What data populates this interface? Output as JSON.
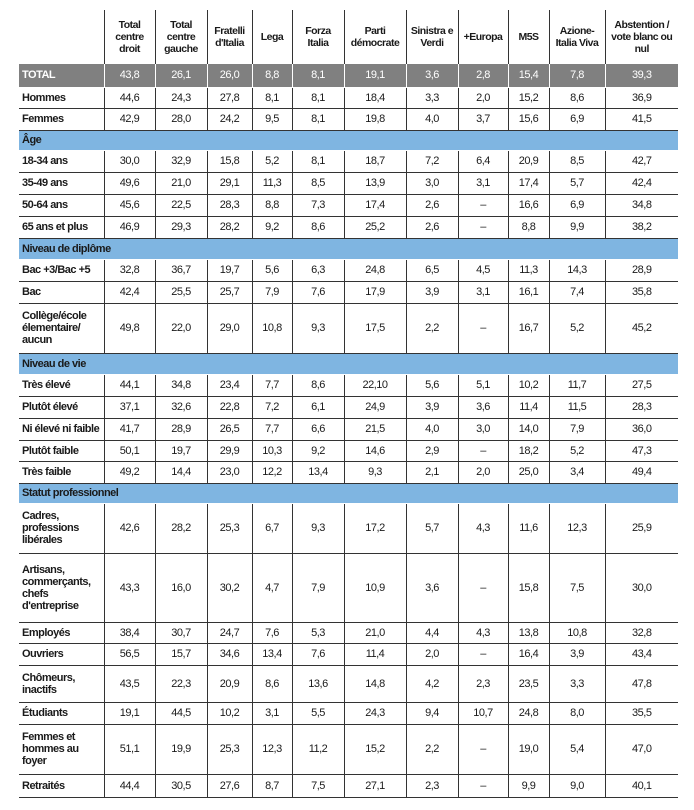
{
  "columns": [
    "",
    "Total centre droit",
    "Total centre gauche",
    "Fratelli d'Italia",
    "Lega",
    "Forza Italia",
    "Parti démocrate",
    "Sinistra e Verdi",
    "+Europa",
    "M5S",
    "Azione-Italia Viva",
    "Abstention / vote blanc ou nul"
  ],
  "colors": {
    "total_bg": "#808080",
    "section_bg": "#7fb5e1"
  },
  "rows": [
    {
      "type": "total",
      "label": "TOTAL",
      "values": [
        "43,8",
        "26,1",
        "26,0",
        "8,8",
        "8,1",
        "19,1",
        "3,6",
        "2,8",
        "15,4",
        "7,8",
        "39,3"
      ]
    },
    {
      "type": "data",
      "label": "Hommes",
      "values": [
        "44,6",
        "24,3",
        "27,8",
        "8,1",
        "8,1",
        "18,4",
        "3,3",
        "2,0",
        "15,2",
        "8,6",
        "36,9"
      ]
    },
    {
      "type": "data",
      "label": "Femmes",
      "values": [
        "42,9",
        "28,0",
        "24,2",
        "9,5",
        "8,1",
        "19,8",
        "4,0",
        "3,7",
        "15,6",
        "6,9",
        "41,5"
      ]
    },
    {
      "type": "section",
      "label": "Âge"
    },
    {
      "type": "data",
      "label": "18-34 ans",
      "values": [
        "30,0",
        "32,9",
        "15,8",
        "5,2",
        "8,1",
        "18,7",
        "7,2",
        "6,4",
        "20,9",
        "8,5",
        "42,7"
      ]
    },
    {
      "type": "data",
      "label": "35-49 ans",
      "values": [
        "49,6",
        "21,0",
        "29,1",
        "11,3",
        "8,5",
        "13,9",
        "3,0",
        "3,1",
        "17,4",
        "5,7",
        "42,4"
      ]
    },
    {
      "type": "data",
      "label": "50-64 ans",
      "values": [
        "45,6",
        "22,5",
        "28,3",
        "8,8",
        "7,3",
        "17,4",
        "2,6",
        "–",
        "16,6",
        "6,9",
        "34,8"
      ]
    },
    {
      "type": "data",
      "label": "65 ans et plus",
      "values": [
        "46,9",
        "29,3",
        "28,2",
        "9,2",
        "8,6",
        "25,2",
        "2,6",
        "–",
        "8,8",
        "9,9",
        "38,2"
      ]
    },
    {
      "type": "section",
      "label": "Niveau de diplôme"
    },
    {
      "type": "data",
      "label": "Bac +3/Bac +5",
      "values": [
        "32,8",
        "36,7",
        "19,7",
        "5,6",
        "6,3",
        "24,8",
        "6,5",
        "4,5",
        "11,3",
        "14,3",
        "28,9"
      ]
    },
    {
      "type": "data",
      "label": "Bac",
      "values": [
        "42,4",
        "25,5",
        "25,7",
        "7,9",
        "7,6",
        "17,9",
        "3,9",
        "3,1",
        "16,1",
        "7,4",
        "35,8"
      ]
    },
    {
      "type": "data",
      "label": "Collège/école élementaire/ aucun",
      "values": [
        "49,8",
        "22,0",
        "29,0",
        "10,8",
        "9,3",
        "17,5",
        "2,2",
        "–",
        "16,7",
        "5,2",
        "45,2"
      ]
    },
    {
      "type": "section",
      "label": "Niveau de vie"
    },
    {
      "type": "data",
      "label": "Très élevé",
      "values": [
        "44,1",
        "34,8",
        "23,4",
        "7,7",
        "8,6",
        "22,10",
        "5,6",
        "5,1",
        "10,2",
        "11,7",
        "27,5"
      ]
    },
    {
      "type": "data",
      "label": "Plutôt élevé",
      "values": [
        "37,1",
        "32,6",
        "22,8",
        "7,2",
        "6,1",
        "24,9",
        "3,9",
        "3,6",
        "11,4",
        "11,5",
        "28,3"
      ]
    },
    {
      "type": "data",
      "label": "Ni élevé ni faible",
      "values": [
        "41,7",
        "28,9",
        "26,5",
        "7,7",
        "6,6",
        "21,5",
        "4,0",
        "3,0",
        "14,0",
        "7,9",
        "36,0"
      ]
    },
    {
      "type": "data",
      "label": "Plutôt faible",
      "values": [
        "50,1",
        "19,7",
        "29,9",
        "10,3",
        "9,2",
        "14,6",
        "2,9",
        "–",
        "18,2",
        "5,2",
        "47,3"
      ]
    },
    {
      "type": "data",
      "label": "Très faible",
      "values": [
        "49,2",
        "14,4",
        "23,0",
        "12,2",
        "13,4",
        "9,3",
        "2,1",
        "2,0",
        "25,0",
        "3,4",
        "49,4"
      ]
    },
    {
      "type": "section",
      "label": "Statut professionnel"
    },
    {
      "type": "data",
      "label": "Cadres, professions libérales",
      "values": [
        "42,6",
        "28,2",
        "25,3",
        "6,7",
        "9,3",
        "17,2",
        "5,7",
        "4,3",
        "11,6",
        "12,3",
        "25,9"
      ]
    },
    {
      "type": "data",
      "label": "Artisans, commerçants, chefs d'entreprise",
      "values": [
        "43,3",
        "16,0",
        "30,2",
        "4,7",
        "7,9",
        "10,9",
        "3,6",
        "–",
        "15,8",
        "7,5",
        "30,0"
      ]
    },
    {
      "type": "data",
      "label": "Employés",
      "values": [
        "38,4",
        "30,7",
        "24,7",
        "7,6",
        "5,3",
        "21,0",
        "4,4",
        "4,3",
        "13,8",
        "10,8",
        "32,8"
      ]
    },
    {
      "type": "data",
      "label": "Ouvriers",
      "values": [
        "56,5",
        "15,7",
        "34,6",
        "13,4",
        "7,6",
        "11,4",
        "2,0",
        "–",
        "16,4",
        "3,9",
        "43,4"
      ]
    },
    {
      "type": "data",
      "label": "Chômeurs, inactifs",
      "values": [
        "43,5",
        "22,3",
        "20,9",
        "8,6",
        "13,6",
        "14,8",
        "4,2",
        "2,3",
        "23,5",
        "3,3",
        "47,8"
      ]
    },
    {
      "type": "data",
      "label": "Étudiants",
      "values": [
        "19,1",
        "44,5",
        "10,2",
        "3,1",
        "5,5",
        "24,3",
        "9,4",
        "10,7",
        "24,8",
        "8,0",
        "35,5"
      ]
    },
    {
      "type": "data",
      "label": "Femmes et hommes au foyer",
      "values": [
        "51,1",
        "19,9",
        "25,3",
        "12,3",
        "11,2",
        "15,2",
        "2,2",
        "–",
        "19,0",
        "5,4",
        "47,0"
      ]
    },
    {
      "type": "data",
      "label": "Retraités",
      "values": [
        "44,4",
        "30,5",
        "27,6",
        "8,7",
        "7,5",
        "27,1",
        "2,3",
        "–",
        "9,9",
        "9,0",
        "40,1"
      ]
    }
  ]
}
